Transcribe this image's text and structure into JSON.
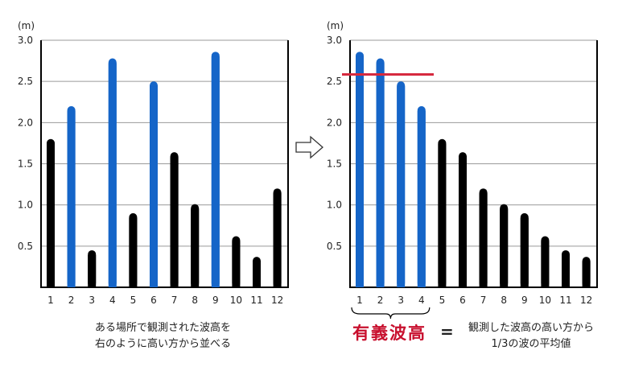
{
  "chart_data": [
    {
      "type": "bar",
      "unit_label": "(m)",
      "categories": [
        "1",
        "2",
        "3",
        "4",
        "5",
        "6",
        "7",
        "8",
        "9",
        "10",
        "11",
        "12"
      ],
      "values": [
        1.8,
        2.2,
        0.45,
        2.78,
        0.9,
        2.5,
        1.64,
        1.01,
        2.86,
        0.62,
        0.37,
        1.2
      ],
      "highlighted": [
        false,
        true,
        false,
        true,
        false,
        true,
        false,
        false,
        true,
        false,
        false,
        false
      ],
      "yticks": [
        "0.5",
        "1.0",
        "1.5",
        "2.0",
        "2.5",
        "3.0"
      ],
      "ylim": [
        0,
        3.0
      ],
      "grid": true,
      "colors": {
        "highlight": "#1565c8",
        "normal": "#000000"
      }
    },
    {
      "type": "bar",
      "unit_label": "(m)",
      "categories": [
        "1",
        "2",
        "3",
        "4",
        "5",
        "6",
        "7",
        "8",
        "9",
        "10",
        "11",
        "12"
      ],
      "values": [
        2.86,
        2.78,
        2.5,
        2.2,
        1.8,
        1.64,
        1.2,
        1.01,
        0.9,
        0.62,
        0.45,
        0.37
      ],
      "highlighted": [
        true,
        true,
        true,
        true,
        false,
        false,
        false,
        false,
        false,
        false,
        false,
        false
      ],
      "yticks": [
        "0.5",
        "1.0",
        "1.5",
        "2.0",
        "2.5",
        "3.0"
      ],
      "ylim": [
        0,
        3.0
      ],
      "grid": true,
      "reference_line": {
        "value": 2.585,
        "color": "#d6293e"
      },
      "colors": {
        "highlight": "#1565c8",
        "normal": "#000000"
      }
    }
  ],
  "captions": {
    "left_line1": "ある場所で観測された波高を",
    "left_line2": "右のように高い方から並べる",
    "definition_term": "有義波高",
    "equals": "=",
    "definition_line1": "観測した波高の高い方から",
    "definition_line2": "1/3の波の平均値"
  }
}
